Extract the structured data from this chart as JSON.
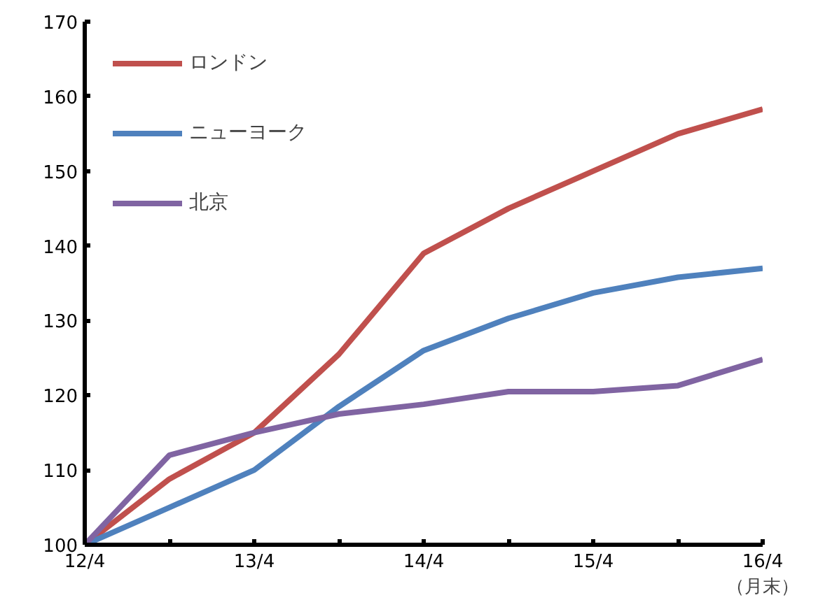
{
  "chart_data": {
    "type": "line",
    "xlabel": "（月末）",
    "categories": [
      "12/4",
      null,
      "13/4",
      null,
      "14/4",
      null,
      "15/4",
      null,
      "16/4"
    ],
    "series": [
      {
        "name": "ロンドン",
        "color": "#c0504d",
        "values": [
          100,
          108.8,
          115,
          125.5,
          139,
          145,
          150,
          155,
          158.3
        ]
      },
      {
        "name": "ニューヨーク",
        "color": "#4f81bd",
        "values": [
          100,
          105,
          110,
          118.5,
          126,
          130.3,
          133.7,
          135.8,
          137
        ]
      },
      {
        "name": "北京",
        "color": "#8064a2",
        "values": [
          100,
          112,
          115,
          117.5,
          118.8,
          120.5,
          120.5,
          121.3,
          124.8
        ]
      }
    ],
    "ylim": [
      100,
      170
    ],
    "yticks": [
      100,
      110,
      120,
      130,
      140,
      150,
      160,
      170
    ],
    "grid": false,
    "legend": "top left",
    "marker": "none",
    "line_style": "solid"
  }
}
